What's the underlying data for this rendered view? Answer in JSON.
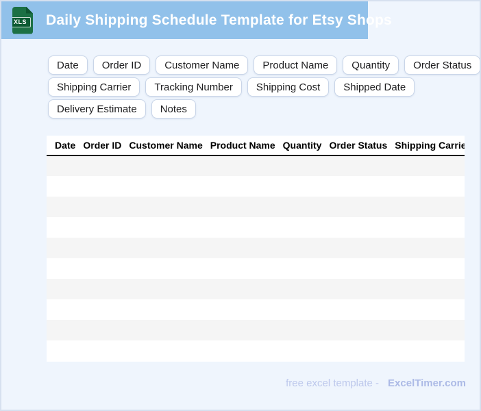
{
  "header": {
    "title": "Daily Shipping Schedule Template for Etsy Shops",
    "file_icon_label": "XLS"
  },
  "chips": {
    "rows": [
      [
        "Date",
        "Order ID",
        "Customer Name",
        "Product Name",
        "Quantity",
        "Order Status"
      ],
      [
        "Shipping Carrier",
        "Tracking Number",
        "Shipping Cost",
        "Shipped Date"
      ],
      [
        "Delivery Estimate",
        "Notes"
      ]
    ]
  },
  "table": {
    "columns": [
      "Date",
      "Order ID",
      "Customer Name",
      "Product Name",
      "Quantity",
      "Order Status",
      "Shipping Carrier"
    ],
    "row_count": 10,
    "rows_empty": true
  },
  "footer": {
    "tagline": "free excel template -",
    "brand": "ExcelTimer.com"
  },
  "colors": {
    "topbar_blue": "#91C1EA",
    "page_background": "#EFF5FD",
    "page_border": "#D6E0EF",
    "excel_green": "#1C7044",
    "excel_green_dark": "#0C5A32",
    "chip_border": "#C9D5E8",
    "row_stripe_gray": "#F5F5F5",
    "header_rule_black": "#000000",
    "footer_tagline_color": "#BDC8EC",
    "footer_brand_color": "#ACBAE6"
  }
}
